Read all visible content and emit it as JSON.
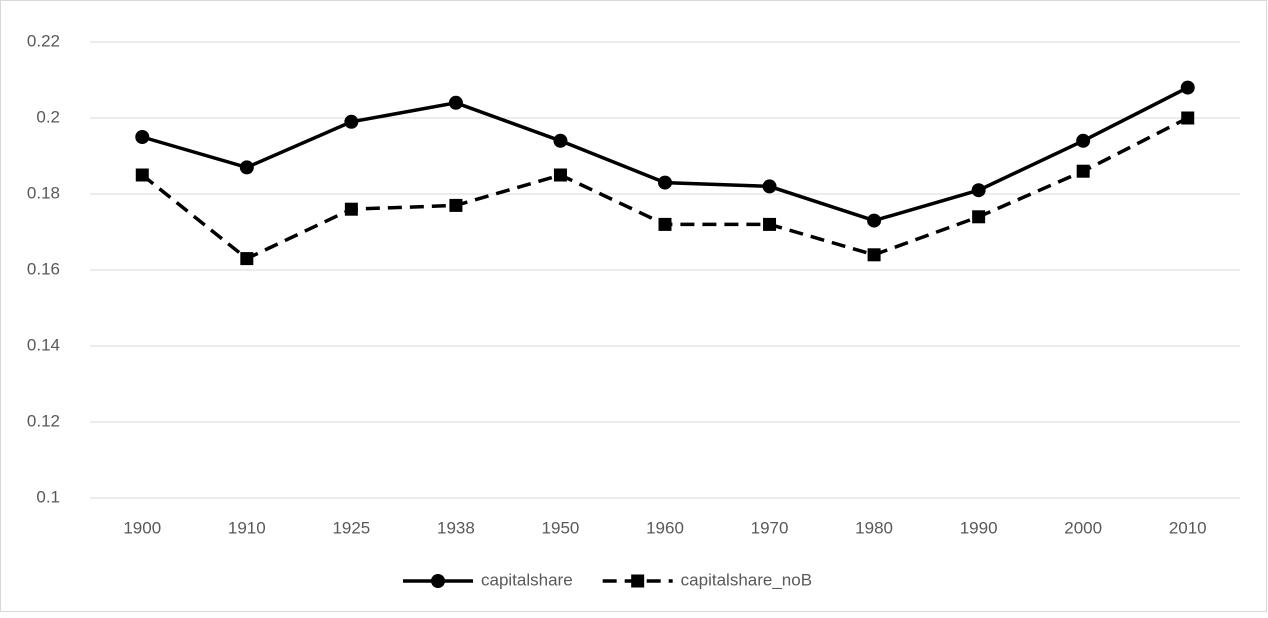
{
  "chart_data": {
    "type": "line",
    "categories": [
      "1900",
      "1910",
      "1925",
      "1938",
      "1950",
      "1960",
      "1970",
      "1980",
      "1990",
      "2000",
      "2010"
    ],
    "series": [
      {
        "name": "capitalshare",
        "color": "#000000",
        "dash": false,
        "marker": "circle",
        "values": [
          0.195,
          0.187,
          0.199,
          0.204,
          0.194,
          0.183,
          0.182,
          0.173,
          0.181,
          0.194,
          0.208
        ]
      },
      {
        "name": "capitalshare_noB",
        "color": "#000000",
        "dash": true,
        "marker": "square",
        "values": [
          0.185,
          0.163,
          0.176,
          0.177,
          0.185,
          0.172,
          0.172,
          0.164,
          0.174,
          0.186,
          0.2
        ]
      }
    ],
    "ylim": [
      0.1,
      0.22
    ],
    "yticks": [
      0.1,
      0.12,
      0.14,
      0.16,
      0.18,
      0.2,
      0.22
    ],
    "grid": true,
    "legend": "bottom"
  }
}
